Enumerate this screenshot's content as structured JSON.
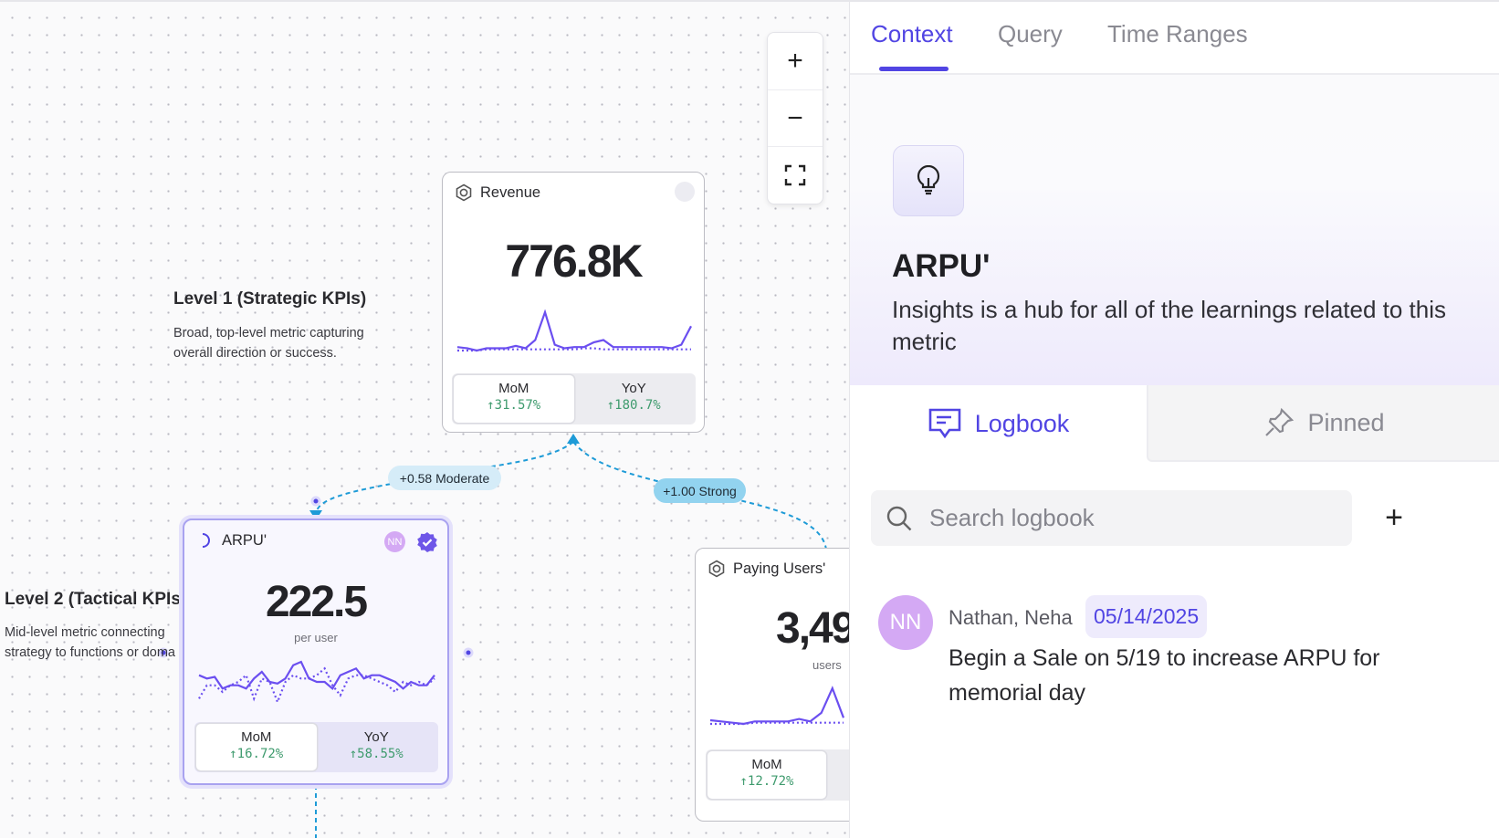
{
  "canvas": {
    "zoom_in": "+",
    "zoom_out": "−",
    "fit": "fit-screen",
    "levels": [
      {
        "title": "Level 1 (Strategic KPIs)",
        "desc": "Broad, top-level metric capturing overall direction or success."
      },
      {
        "title": "Level 2 (Tactical KPIs)",
        "desc": "Mid-level metric connecting strategy to functions or doma"
      }
    ],
    "edges": [
      {
        "label": "+0.58 Moderate",
        "color": "#1e9bd7"
      },
      {
        "label": "+1.00 Strong",
        "color": "#1e9bd7"
      }
    ],
    "cards": [
      {
        "name": "Revenue",
        "value": "776.8K",
        "unit": "",
        "mom_label": "MoM",
        "mom": "↑31.57%",
        "yoy_label": "YoY",
        "yoy": "↑180.7%",
        "sparkline": {
          "actual": [
            3,
            2.5,
            1.5,
            2.5,
            2.5,
            2.5,
            3.5,
            2.5,
            6,
            18,
            4,
            2.5,
            3,
            3,
            5,
            6,
            3,
            3,
            3,
            3,
            3,
            3,
            2.5,
            4,
            12
          ],
          "prior": [
            1.5,
            1.5,
            1.5,
            2,
            2,
            2,
            2,
            2,
            2,
            2,
            2,
            2,
            2,
            2.5,
            2.5,
            2,
            2,
            2,
            2,
            2,
            2,
            2,
            2,
            2,
            2
          ]
        }
      },
      {
        "name": "ARPU'",
        "value": "222.5",
        "unit": "per user",
        "initials": "NN",
        "mom_label": "MoM",
        "mom": "↑16.72%",
        "yoy_label": "YoY",
        "yoy": "↑58.55%",
        "sparkline": {
          "actual": [
            10,
            9,
            9.5,
            6,
            7,
            7,
            6,
            9,
            11,
            8,
            7.5,
            9,
            13,
            14,
            9,
            8,
            8,
            6,
            10,
            11,
            12,
            9,
            10,
            10,
            9,
            8,
            6,
            8,
            7,
            7,
            10
          ],
          "prior": [
            3,
            7,
            7,
            5,
            7,
            8,
            10,
            3,
            9,
            8,
            2,
            8,
            10,
            9,
            9,
            10,
            12,
            7,
            4,
            9,
            10,
            10,
            9,
            8,
            7,
            5,
            8,
            7,
            8,
            7,
            9
          ]
        }
      },
      {
        "name": "Paying Users'",
        "value": "3,49",
        "unit": "users",
        "mom_label": "MoM",
        "mom": "↑12.72%",
        "sparkline": {
          "actual": [
            3,
            2.5,
            2,
            1.5,
            2.5,
            2.5,
            2.5,
            2.5,
            3.5,
            2.5,
            6,
            16,
            4
          ],
          "prior": [
            1.5,
            1.5,
            1.5,
            1.5,
            2,
            2,
            2,
            2,
            2,
            2,
            2,
            2,
            2
          ]
        }
      }
    ]
  },
  "panel": {
    "tabs": [
      "Context",
      "Query",
      "Time Ranges"
    ],
    "active_tab": "Context",
    "title": "ARPU'",
    "description": "Insights is a hub for all of the learnings related to this metric",
    "subtabs": [
      "Logbook",
      "Pinned"
    ],
    "search_placeholder": "Search logbook",
    "add_label": "+",
    "entries": [
      {
        "initials": "NN",
        "author": "Nathan, Neha",
        "date": "05/14/2025",
        "text": "Begin a Sale on 5/19 to increase ARPU for memorial day"
      }
    ],
    "accent": "#5145e3"
  }
}
